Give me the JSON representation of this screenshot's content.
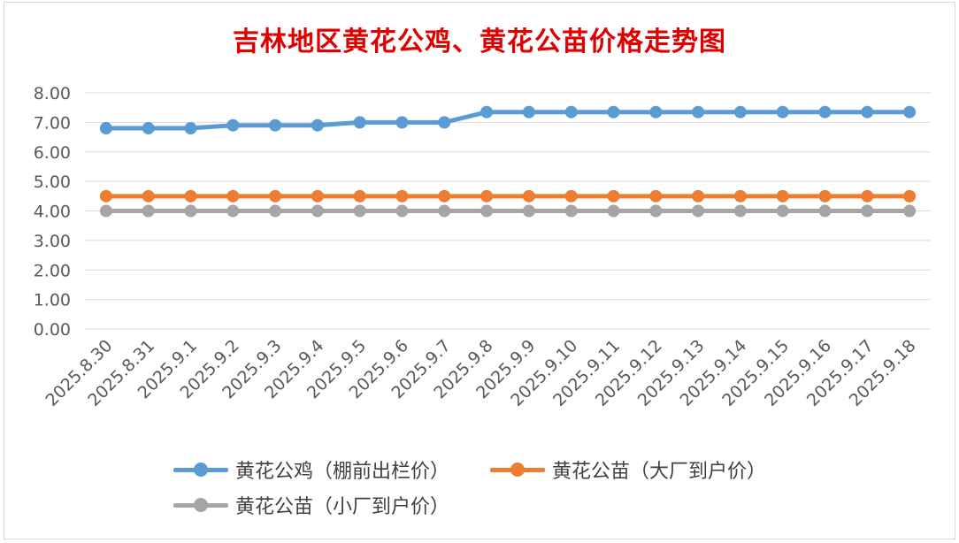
{
  "chart_data": {
    "type": "line",
    "title": "吉林地区黄花公鸡、黄花公苗价格走势图",
    "categories": [
      "2025.8.30",
      "2025.8.31",
      "2025.9.1",
      "2025.9.2",
      "2025.9.3",
      "2025.9.4",
      "2025.9.5",
      "2025.9.6",
      "2025.9.7",
      "2025.9.8",
      "2025.9.9",
      "2025.9.10",
      "2025.9.11",
      "2025.9.12",
      "2025.9.13",
      "2025.9.14",
      "2025.9.15",
      "2025.9.16",
      "2025.9.17",
      "2025.9.18"
    ],
    "ylim": [
      0,
      8
    ],
    "yticks": [
      "0.00",
      "1.00",
      "2.00",
      "3.00",
      "4.00",
      "5.00",
      "6.00",
      "7.00",
      "8.00"
    ],
    "grid": true,
    "legend_position": "bottom",
    "series": [
      {
        "name": "黄花公鸡（棚前出栏价）",
        "color": "#5b9bd5",
        "values": [
          6.8,
          6.8,
          6.8,
          6.9,
          6.9,
          6.9,
          7.0,
          7.0,
          7.0,
          7.35,
          7.35,
          7.35,
          7.35,
          7.35,
          7.35,
          7.35,
          7.35,
          7.35,
          7.35,
          7.35
        ]
      },
      {
        "name": "黄花公苗（大厂到户价）",
        "color": "#ed7d31",
        "values": [
          4.5,
          4.5,
          4.5,
          4.5,
          4.5,
          4.5,
          4.5,
          4.5,
          4.5,
          4.5,
          4.5,
          4.5,
          4.5,
          4.5,
          4.5,
          4.5,
          4.5,
          4.5,
          4.5,
          4.5
        ]
      },
      {
        "name": "黄花公苗（小厂到户价）",
        "color": "#a5a5a5",
        "values": [
          4.0,
          4.0,
          4.0,
          4.0,
          4.0,
          4.0,
          4.0,
          4.0,
          4.0,
          4.0,
          4.0,
          4.0,
          4.0,
          4.0,
          4.0,
          4.0,
          4.0,
          4.0,
          4.0,
          4.0
        ]
      }
    ]
  }
}
